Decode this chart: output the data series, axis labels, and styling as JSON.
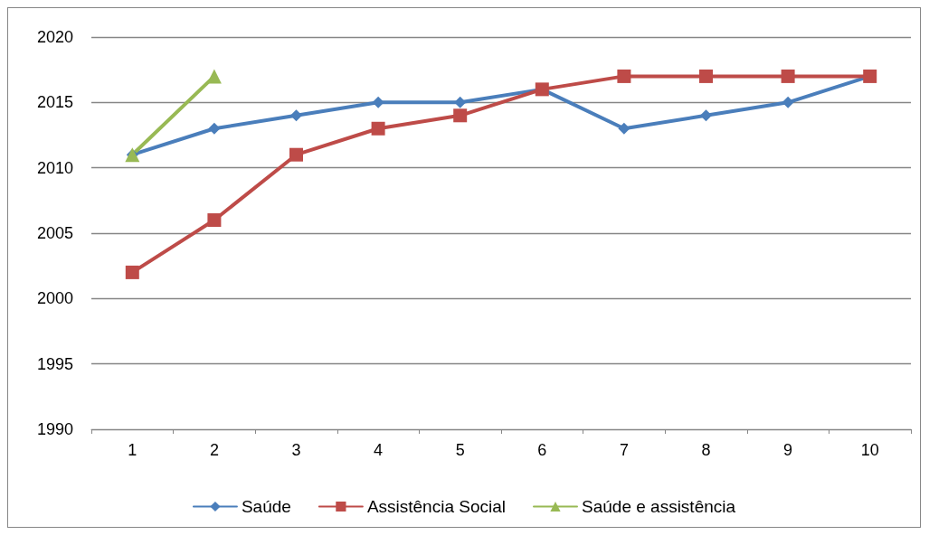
{
  "chart_data": {
    "type": "line",
    "categories": [
      "1",
      "2",
      "3",
      "4",
      "5",
      "6",
      "7",
      "8",
      "9",
      "10"
    ],
    "series": [
      {
        "name": "Saúde",
        "color": "#4a7ebb",
        "marker": "diamond",
        "values": [
          2011,
          2013,
          2014,
          2015,
          2015,
          2016,
          2013,
          2014,
          2015,
          2017
        ]
      },
      {
        "name": "Assistência Social",
        "color": "#be4b48",
        "marker": "square",
        "values": [
          2002,
          2006,
          2011,
          2013,
          2014,
          2016,
          2017,
          2017,
          2017,
          2017
        ]
      },
      {
        "name": "Saúde e assistência",
        "color": "#98b954",
        "marker": "triangle",
        "values": [
          2011,
          2017,
          null,
          null,
          null,
          null,
          null,
          null,
          null,
          null
        ]
      }
    ],
    "ylim": [
      1990,
      2020
    ],
    "yticks": [
      1990,
      1995,
      2000,
      2005,
      2010,
      2015,
      2020
    ],
    "grid": "y",
    "legend": "bottom",
    "line_style": "solid"
  }
}
